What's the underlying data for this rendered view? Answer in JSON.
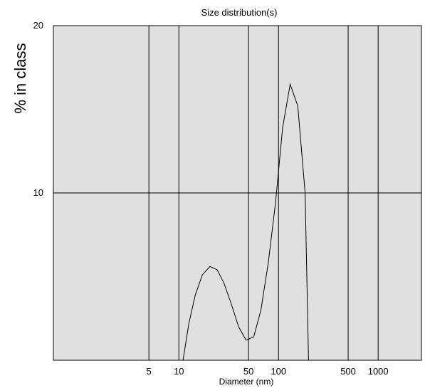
{
  "chart_data": {
    "type": "line",
    "title": "Size distribution(s)",
    "xlabel": "Diameter (nm)",
    "ylabel": "% in class",
    "x_scale": "log",
    "xlim": [
      0.55,
      2720
    ],
    "ylim": [
      0,
      20
    ],
    "x_ticks": [
      5,
      10,
      50,
      100,
      500,
      1000
    ],
    "x_tick_labels": [
      "5",
      "10",
      "50",
      "100",
      "500",
      "1000"
    ],
    "y_ticks": [
      10,
      20
    ],
    "y_tick_labels": [
      "10",
      "20"
    ],
    "grid": true,
    "colors": {
      "plot_bg": "#e0e0e0",
      "line": "#000000",
      "grid": "#000000"
    },
    "series": [
      {
        "x": [
          11,
          12.6,
          14.6,
          17.2,
          20.5,
          24.3,
          28.4,
          33.4,
          39.8,
          47.3,
          56.4,
          66.6,
          78.8,
          93.3,
          110,
          131,
          156,
          185,
          200
        ],
        "y": [
          0,
          2.2,
          3.9,
          5.1,
          5.6,
          5.4,
          4.6,
          3.4,
          2.0,
          1.2,
          1.4,
          3.0,
          5.8,
          9.4,
          13.9,
          16.5,
          15.2,
          10.0,
          0
        ]
      }
    ]
  }
}
